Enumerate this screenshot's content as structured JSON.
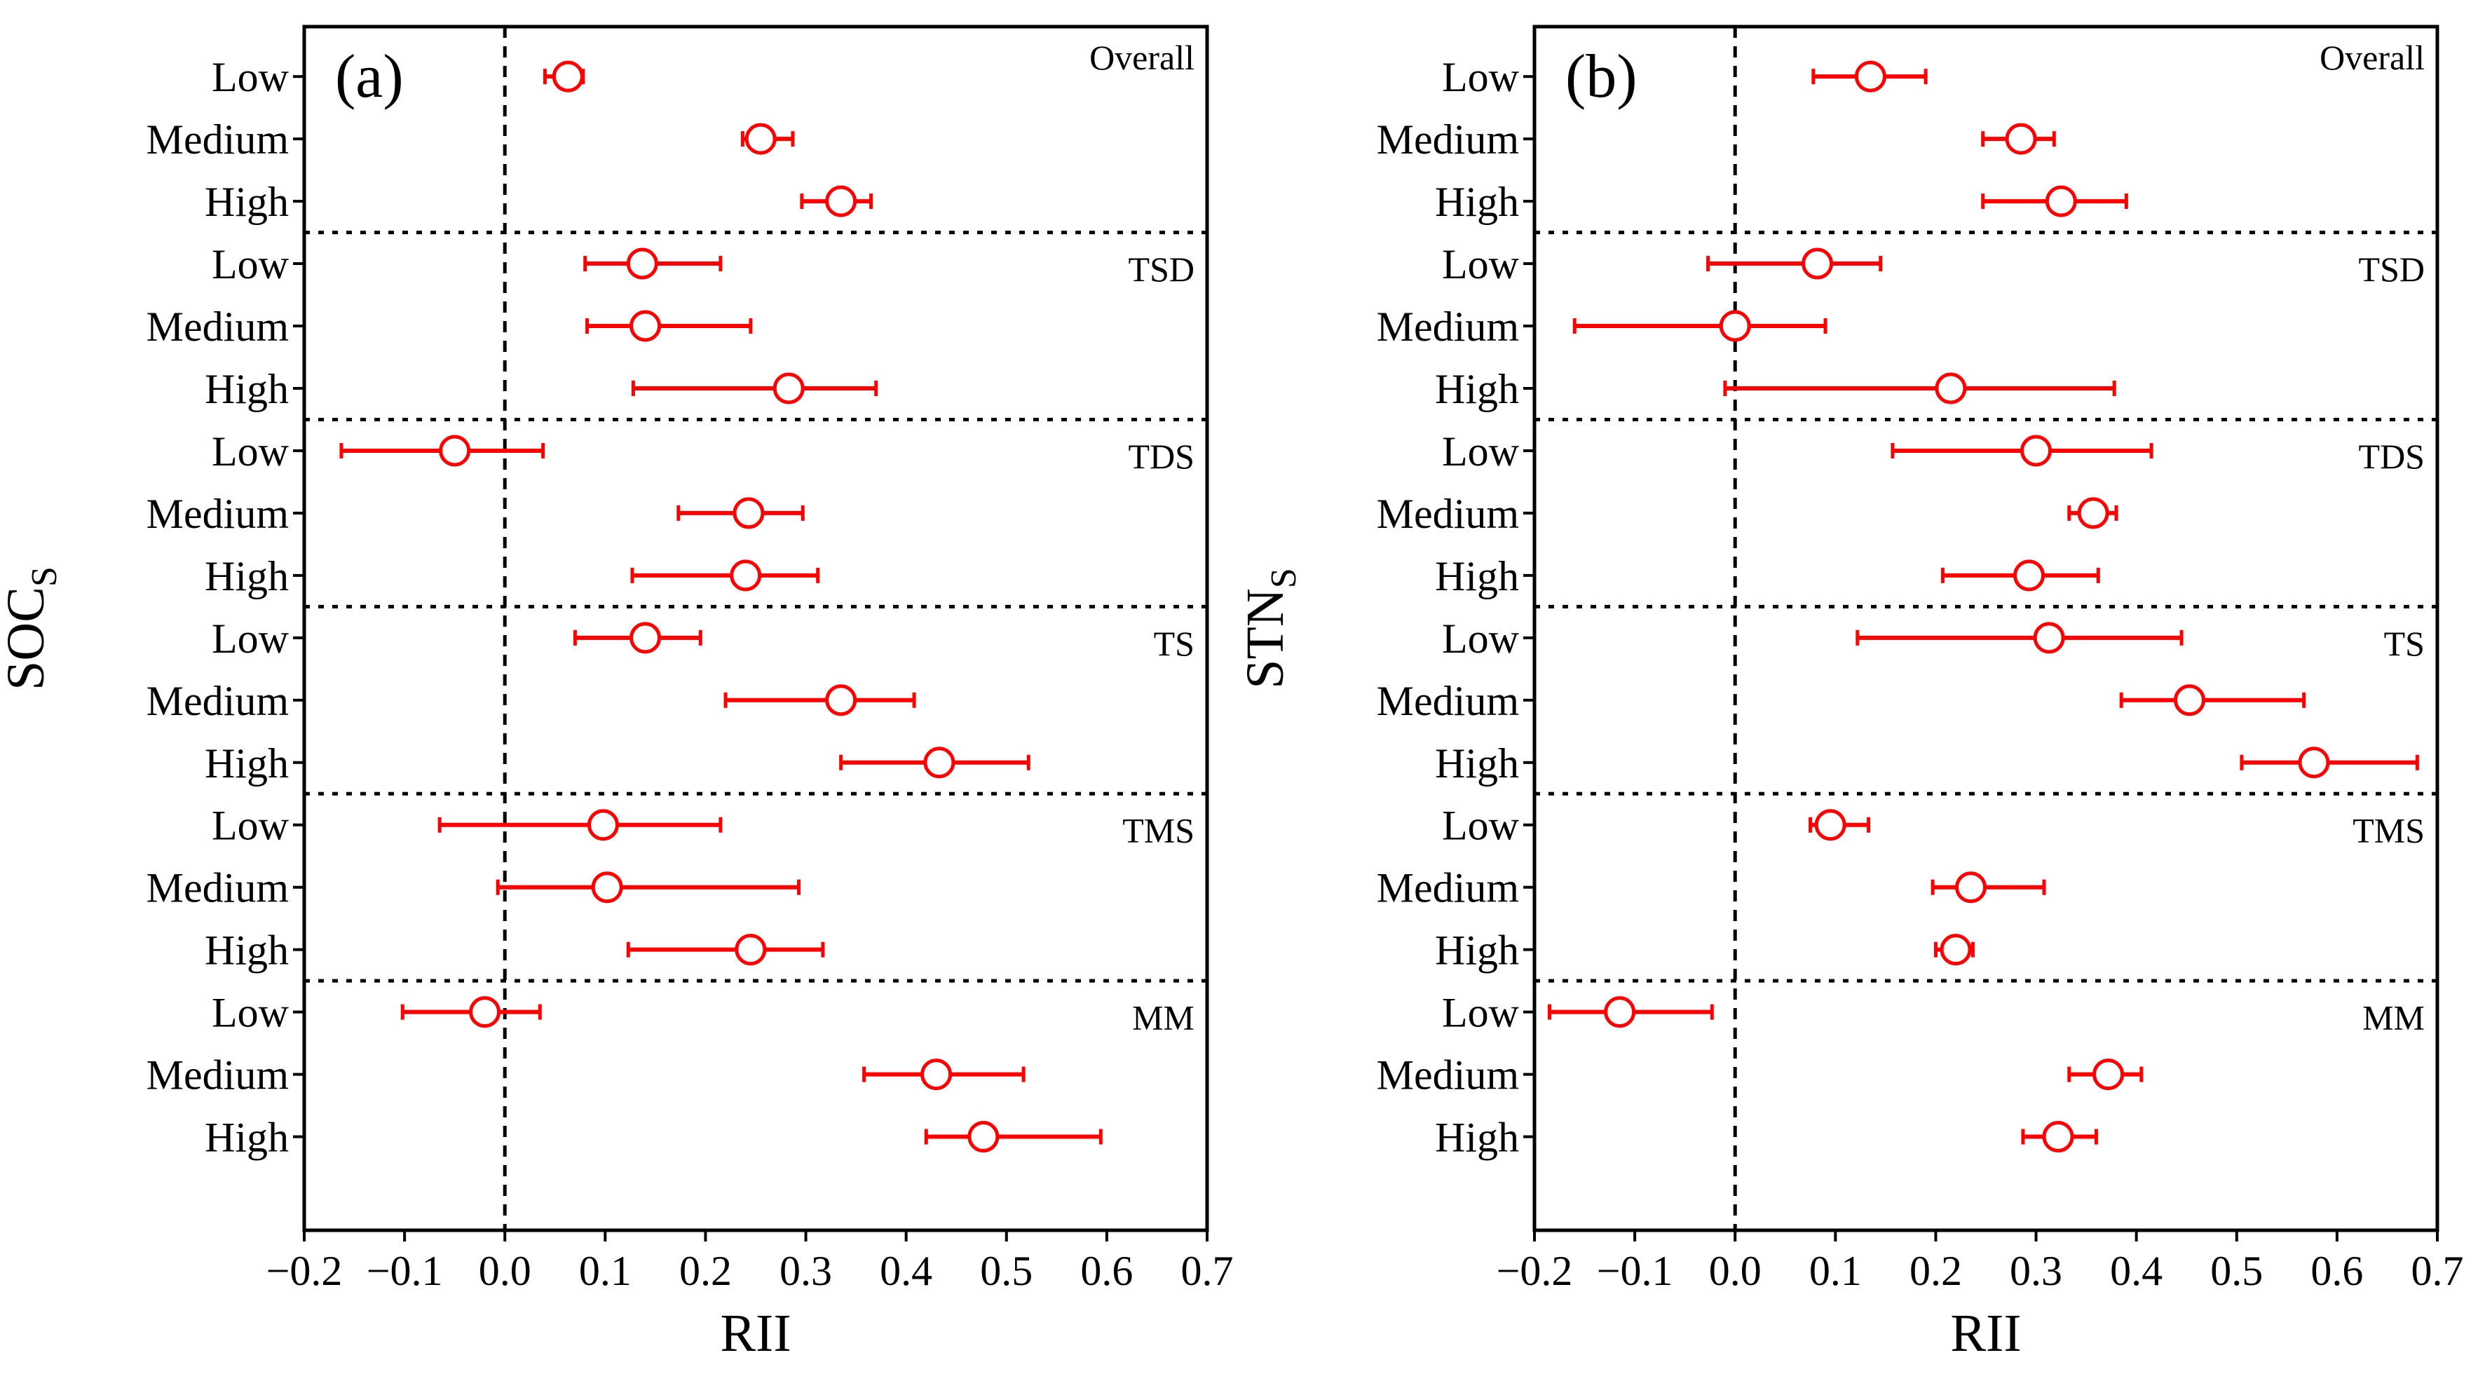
{
  "chart_data": [
    {
      "type": "errorbar",
      "panel_label": "(a)",
      "xlabel": "RII",
      "ylabel": "SOC",
      "ylabel_subscript": "S",
      "xlim": [
        -0.2,
        0.7
      ],
      "xticks": [
        "−0.2",
        "−0.1",
        "0.0",
        "0.1",
        "0.2",
        "0.3",
        "0.4",
        "0.5",
        "0.6",
        "0.7"
      ],
      "reference_line_x": 0.0,
      "groups": [
        {
          "name": "Overall",
          "points": [
            {
              "category": "Low",
              "mean": 0.063,
              "lower": 0.04,
              "upper": 0.078
            },
            {
              "category": "Medium",
              "mean": 0.255,
              "lower": 0.237,
              "upper": 0.287
            },
            {
              "category": "High",
              "mean": 0.335,
              "lower": 0.296,
              "upper": 0.365
            }
          ]
        },
        {
          "name": "TSD",
          "points": [
            {
              "category": "Low",
              "mean": 0.137,
              "lower": 0.08,
              "upper": 0.215
            },
            {
              "category": "Medium",
              "mean": 0.14,
              "lower": 0.082,
              "upper": 0.245
            },
            {
              "category": "High",
              "mean": 0.283,
              "lower": 0.128,
              "upper": 0.37
            }
          ]
        },
        {
          "name": "TDS",
          "points": [
            {
              "category": "Low",
              "mean": -0.05,
              "lower": -0.163,
              "upper": 0.038
            },
            {
              "category": "Medium",
              "mean": 0.243,
              "lower": 0.173,
              "upper": 0.297
            },
            {
              "category": "High",
              "mean": 0.24,
              "lower": 0.127,
              "upper": 0.312
            }
          ]
        },
        {
          "name": "TS",
          "points": [
            {
              "category": "Low",
              "mean": 0.14,
              "lower": 0.07,
              "upper": 0.195
            },
            {
              "category": "Medium",
              "mean": 0.335,
              "lower": 0.22,
              "upper": 0.408
            },
            {
              "category": "High",
              "mean": 0.433,
              "lower": 0.335,
              "upper": 0.522
            }
          ]
        },
        {
          "name": "TMS",
          "points": [
            {
              "category": "Low",
              "mean": 0.098,
              "lower": -0.065,
              "upper": 0.215
            },
            {
              "category": "Medium",
              "mean": 0.102,
              "lower": -0.007,
              "upper": 0.293
            },
            {
              "category": "High",
              "mean": 0.245,
              "lower": 0.123,
              "upper": 0.317
            }
          ]
        },
        {
          "name": "MM",
          "points": [
            {
              "category": "Low",
              "mean": -0.02,
              "lower": -0.102,
              "upper": 0.035
            },
            {
              "category": "Medium",
              "mean": 0.43,
              "lower": 0.358,
              "upper": 0.517
            },
            {
              "category": "High",
              "mean": 0.477,
              "lower": 0.42,
              "upper": 0.594
            }
          ]
        }
      ]
    },
    {
      "type": "errorbar",
      "panel_label": "(b)",
      "xlabel": "RII",
      "ylabel": "STN",
      "ylabel_subscript": "S",
      "xlim": [
        -0.2,
        0.7
      ],
      "xticks": [
        "−0.2",
        "−0.1",
        "0.0",
        "0.1",
        "0.2",
        "0.3",
        "0.4",
        "0.5",
        "0.6",
        "0.7"
      ],
      "reference_line_x": 0.0,
      "groups": [
        {
          "name": "Overall",
          "points": [
            {
              "category": "Low",
              "mean": 0.135,
              "lower": 0.078,
              "upper": 0.19
            },
            {
              "category": "Medium",
              "mean": 0.285,
              "lower": 0.247,
              "upper": 0.318
            },
            {
              "category": "High",
              "mean": 0.325,
              "lower": 0.247,
              "upper": 0.39
            }
          ]
        },
        {
          "name": "TSD",
          "points": [
            {
              "category": "Low",
              "mean": 0.082,
              "lower": -0.027,
              "upper": 0.145
            },
            {
              "category": "Medium",
              "mean": 0.0,
              "lower": -0.16,
              "upper": 0.09
            },
            {
              "category": "High",
              "mean": 0.215,
              "lower": -0.01,
              "upper": 0.378
            }
          ]
        },
        {
          "name": "TDS",
          "points": [
            {
              "category": "Low",
              "mean": 0.3,
              "lower": 0.157,
              "upper": 0.415
            },
            {
              "category": "Medium",
              "mean": 0.357,
              "lower": 0.333,
              "upper": 0.38
            },
            {
              "category": "High",
              "mean": 0.293,
              "lower": 0.207,
              "upper": 0.362
            }
          ]
        },
        {
          "name": "TS",
          "points": [
            {
              "category": "Low",
              "mean": 0.313,
              "lower": 0.122,
              "upper": 0.445
            },
            {
              "category": "Medium",
              "mean": 0.453,
              "lower": 0.385,
              "upper": 0.567
            },
            {
              "category": "High",
              "mean": 0.577,
              "lower": 0.505,
              "upper": 0.68
            }
          ]
        },
        {
          "name": "TMS",
          "points": [
            {
              "category": "Low",
              "mean": 0.095,
              "lower": 0.075,
              "upper": 0.133
            },
            {
              "category": "Medium",
              "mean": 0.235,
              "lower": 0.197,
              "upper": 0.308
            },
            {
              "category": "High",
              "mean": 0.22,
              "lower": 0.2,
              "upper": 0.237
            }
          ]
        },
        {
          "name": "MM",
          "points": [
            {
              "category": "Low",
              "mean": -0.115,
              "lower": -0.185,
              "upper": -0.023
            },
            {
              "category": "Medium",
              "mean": 0.372,
              "lower": 0.333,
              "upper": 0.405
            },
            {
              "category": "High",
              "mean": 0.322,
              "lower": 0.287,
              "upper": 0.36
            }
          ]
        }
      ]
    }
  ],
  "style": {
    "marker_color": "#ff0000",
    "axis_color": "#000000",
    "background": "#ffffff"
  }
}
